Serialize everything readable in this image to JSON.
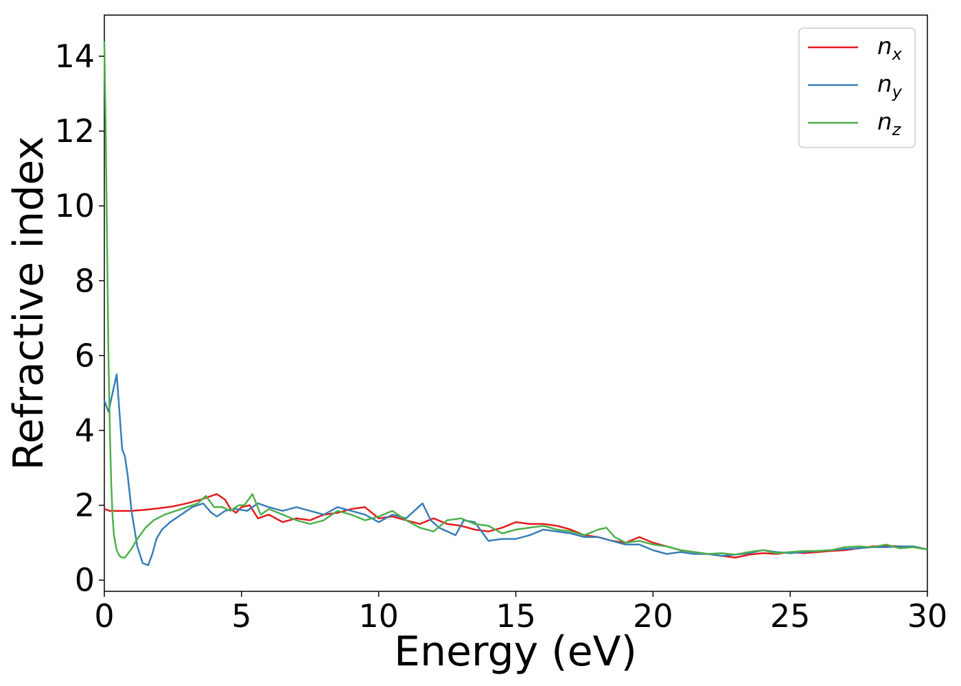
{
  "chart_data": {
    "type": "line",
    "title": "",
    "xlabel": "Energy (eV)",
    "ylabel": "Refractive index",
    "xlim": [
      0,
      30
    ],
    "ylim": [
      -0.3,
      15.1
    ],
    "xticks": [
      "0",
      "5",
      "10",
      "15",
      "20",
      "25",
      "30"
    ],
    "yticks": [
      "0",
      "2",
      "4",
      "6",
      "8",
      "10",
      "12",
      "14"
    ],
    "grid": false,
    "legend_position": "top-right",
    "series": [
      {
        "name": "n",
        "subscript": "x",
        "color": "#e41a1c",
        "x": [
          0,
          0.2,
          0.5,
          1,
          1.5,
          2,
          2.5,
          3,
          3.5,
          3.9,
          4.1,
          4.4,
          4.6,
          4.8,
          5,
          5.3,
          5.6,
          6,
          6.5,
          7,
          7.5,
          8,
          8.5,
          9,
          9.5,
          10,
          10.5,
          11,
          11.5,
          12,
          12.5,
          13,
          13.5,
          14,
          14.5,
          15,
          15.5,
          16,
          16.5,
          17,
          17.5,
          18,
          18.5,
          19,
          19.5,
          20,
          20.5,
          21,
          21.5,
          22,
          22.5,
          23,
          23.5,
          24,
          24.5,
          25,
          25.5,
          26,
          26.5,
          27,
          27.5,
          28,
          28.5,
          29,
          29.5,
          30
        ],
        "y": [
          1.9,
          1.85,
          1.85,
          1.85,
          1.88,
          1.92,
          1.97,
          2.05,
          2.15,
          2.25,
          2.3,
          2.15,
          1.9,
          1.8,
          1.95,
          2.0,
          1.65,
          1.75,
          1.55,
          1.65,
          1.6,
          1.75,
          1.8,
          1.9,
          1.95,
          1.65,
          1.7,
          1.6,
          1.5,
          1.65,
          1.5,
          1.45,
          1.35,
          1.3,
          1.4,
          1.55,
          1.5,
          1.5,
          1.45,
          1.35,
          1.2,
          1.15,
          1.05,
          1.0,
          1.15,
          1.0,
          0.9,
          0.8,
          0.75,
          0.7,
          0.65,
          0.6,
          0.68,
          0.72,
          0.7,
          0.75,
          0.72,
          0.75,
          0.78,
          0.8,
          0.85,
          0.9,
          0.92,
          0.9,
          0.88,
          0.82
        ]
      },
      {
        "name": "n",
        "subscript": "y",
        "color": "#377eb8",
        "x": [
          0,
          0.15,
          0.3,
          0.45,
          0.55,
          0.65,
          0.75,
          0.85,
          1.0,
          1.2,
          1.4,
          1.6,
          1.75,
          1.9,
          2.1,
          2.4,
          2.8,
          3.2,
          3.6,
          3.9,
          4.1,
          4.4,
          4.8,
          5.2,
          5.6,
          6,
          6.5,
          7,
          7.5,
          8,
          8.5,
          9,
          9.5,
          10,
          10.5,
          11,
          11.3,
          11.6,
          11.9,
          12.2,
          12.5,
          12.8,
          13.1,
          13.5,
          14,
          14.5,
          15,
          15.5,
          16,
          16.5,
          17,
          17.5,
          18,
          18.5,
          19,
          19.5,
          20,
          20.5,
          21,
          21.5,
          22,
          22.5,
          23,
          23.5,
          24,
          24.5,
          25,
          25.5,
          26,
          26.5,
          27,
          27.5,
          28,
          28.5,
          29,
          29.5,
          30
        ],
        "y": [
          4.8,
          4.5,
          5.0,
          5.5,
          4.5,
          3.5,
          3.3,
          2.8,
          1.8,
          0.9,
          0.45,
          0.4,
          0.7,
          1.1,
          1.35,
          1.55,
          1.75,
          1.95,
          2.05,
          1.8,
          1.7,
          1.85,
          1.9,
          1.85,
          2.05,
          1.95,
          1.85,
          1.95,
          1.85,
          1.75,
          1.95,
          1.85,
          1.75,
          1.55,
          1.75,
          1.65,
          1.85,
          2.05,
          1.6,
          1.4,
          1.3,
          1.2,
          1.6,
          1.55,
          1.05,
          1.1,
          1.1,
          1.2,
          1.35,
          1.3,
          1.25,
          1.15,
          1.15,
          1.05,
          0.95,
          0.95,
          0.8,
          0.7,
          0.75,
          0.7,
          0.7,
          0.65,
          0.68,
          0.72,
          0.8,
          0.75,
          0.72,
          0.75,
          0.78,
          0.8,
          0.83,
          0.85,
          0.88,
          0.88,
          0.9,
          0.9,
          0.82
        ]
      },
      {
        "name": "n",
        "subscript": "z",
        "color": "#4daf4a",
        "x": [
          0,
          0.05,
          0.1,
          0.15,
          0.2,
          0.25,
          0.3,
          0.35,
          0.45,
          0.55,
          0.65,
          0.75,
          0.85,
          1.0,
          1.2,
          1.5,
          1.8,
          2.2,
          2.6,
          3.0,
          3.4,
          3.7,
          4.0,
          4.3,
          4.6,
          4.9,
          5.1,
          5.4,
          5.7,
          6,
          6.5,
          7,
          7.5,
          8,
          8.5,
          9,
          9.5,
          10,
          10.5,
          11,
          11.5,
          12,
          12.5,
          13,
          13.5,
          14,
          14.5,
          15,
          15.5,
          16,
          16.5,
          17,
          17.5,
          18,
          18.3,
          18.6,
          19,
          19.5,
          20,
          20.5,
          21,
          21.5,
          22,
          22.5,
          23,
          23.5,
          24,
          24.5,
          25,
          25.5,
          26,
          26.5,
          27,
          27.5,
          28,
          28.5,
          29,
          29.5,
          30
        ],
        "y": [
          14.4,
          12.0,
          9.0,
          6.0,
          4.0,
          2.6,
          1.7,
          1.2,
          0.8,
          0.65,
          0.6,
          0.6,
          0.7,
          0.85,
          1.1,
          1.4,
          1.6,
          1.75,
          1.85,
          1.95,
          2.05,
          2.25,
          1.95,
          1.95,
          1.85,
          2.0,
          2.0,
          2.3,
          1.75,
          1.9,
          1.75,
          1.6,
          1.5,
          1.6,
          1.85,
          1.75,
          1.6,
          1.7,
          1.85,
          1.6,
          1.4,
          1.3,
          1.6,
          1.65,
          1.5,
          1.45,
          1.25,
          1.35,
          1.4,
          1.45,
          1.35,
          1.3,
          1.2,
          1.35,
          1.4,
          1.15,
          1.0,
          1.05,
          0.95,
          0.9,
          0.8,
          0.75,
          0.7,
          0.72,
          0.68,
          0.75,
          0.8,
          0.72,
          0.75,
          0.78,
          0.78,
          0.8,
          0.88,
          0.9,
          0.88,
          0.95,
          0.85,
          0.88,
          0.82
        ]
      }
    ]
  }
}
